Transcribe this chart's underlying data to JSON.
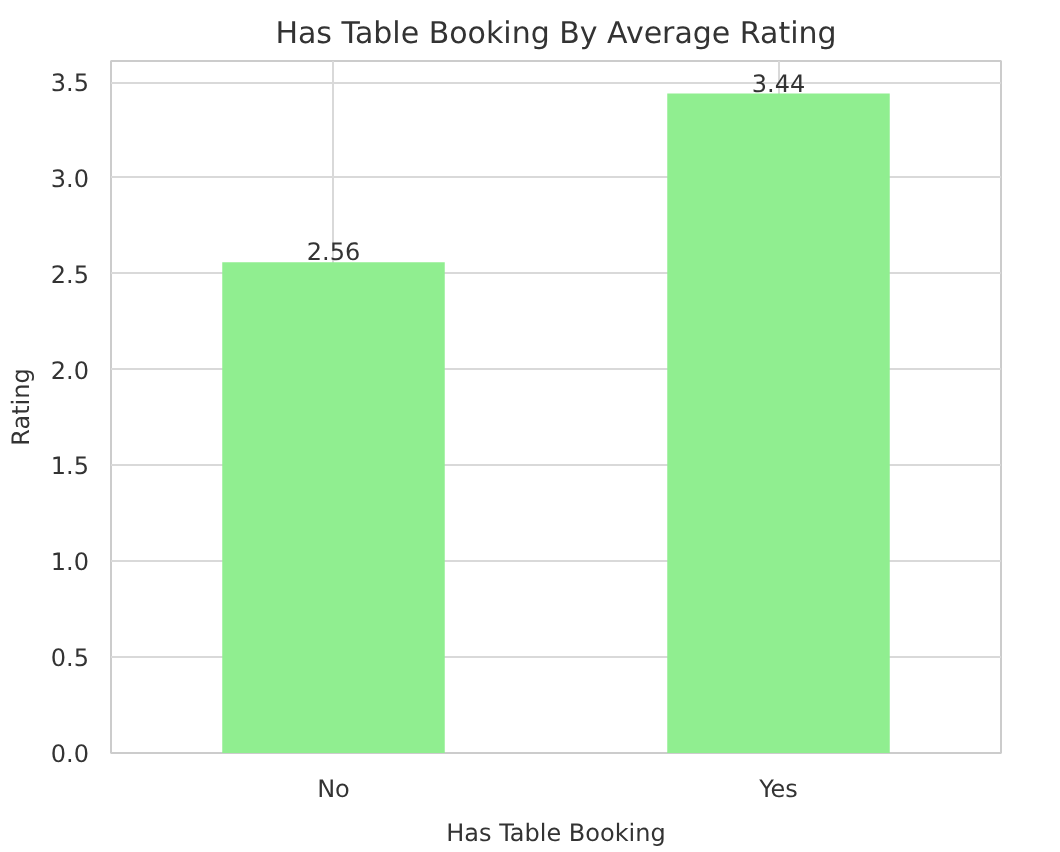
{
  "chart_data": {
    "type": "bar",
    "title": "Has Table Booking By Average Rating",
    "xlabel": "Has Table Booking",
    "ylabel": "Rating",
    "categories": [
      "No",
      "Yes"
    ],
    "values": [
      2.56,
      3.44
    ],
    "color": "#90ee90",
    "ylim": [
      0,
      3.61
    ],
    "yticks": [
      {
        "value": 0,
        "label": "0.0"
      },
      0.5,
      {
        "value": 1,
        "label": "1.0"
      },
      1.5,
      {
        "value": 2,
        "label": "2.0"
      },
      2.5,
      {
        "value": 3,
        "label": "3.0"
      },
      3.5
    ],
    "grid": true,
    "data_labels": true
  }
}
